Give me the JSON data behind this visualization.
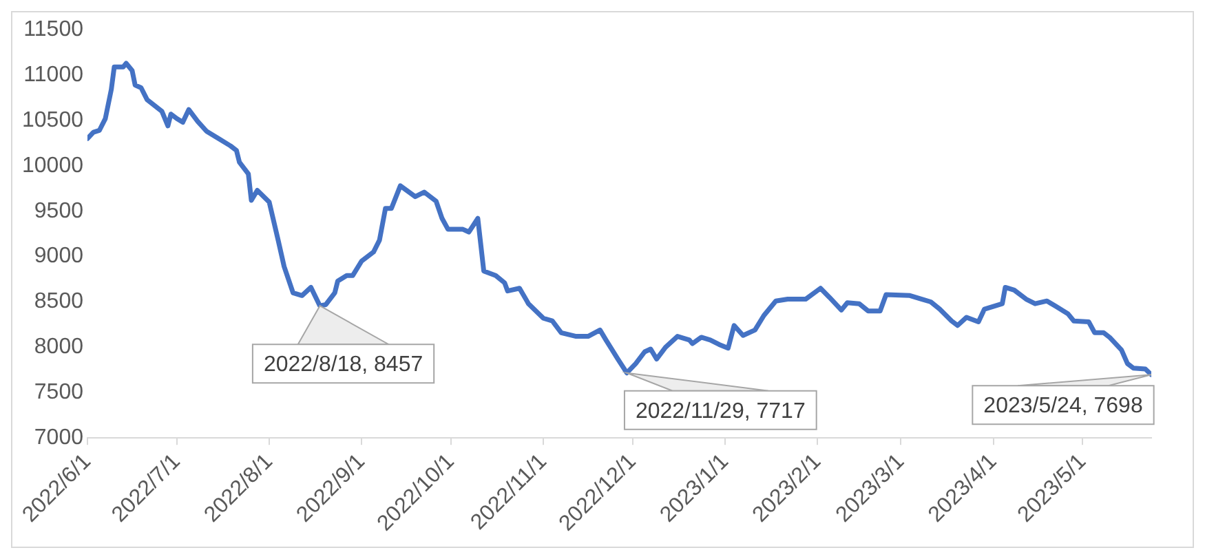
{
  "chart_data": {
    "type": "line",
    "x": [
      "2022-06-01",
      "2022-06-03",
      "2022-06-05",
      "2022-06-07",
      "2022-06-09",
      "2022-06-10",
      "2022-06-13",
      "2022-06-14",
      "2022-06-16",
      "2022-06-17",
      "2022-06-19",
      "2022-06-21",
      "2022-06-26",
      "2022-06-28",
      "2022-06-29",
      "2022-07-01",
      "2022-07-03",
      "2022-07-05",
      "2022-07-08",
      "2022-07-11",
      "2022-07-15",
      "2022-07-19",
      "2022-07-21",
      "2022-07-22",
      "2022-07-25",
      "2022-07-26",
      "2022-07-28",
      "2022-08-01",
      "2022-08-04",
      "2022-08-06",
      "2022-08-09",
      "2022-08-12",
      "2022-08-15",
      "2022-08-18",
      "2022-08-20",
      "2022-08-23",
      "2022-08-24",
      "2022-08-27",
      "2022-08-29",
      "2022-09-01",
      "2022-09-05",
      "2022-09-07",
      "2022-09-09",
      "2022-09-11",
      "2022-09-14",
      "2022-09-19",
      "2022-09-22",
      "2022-09-26",
      "2022-09-28",
      "2022-09-30",
      "2022-10-05",
      "2022-10-07",
      "2022-10-10",
      "2022-10-12",
      "2022-10-16",
      "2022-10-19",
      "2022-10-20",
      "2022-10-24",
      "2022-10-27",
      "2022-11-01",
      "2022-11-04",
      "2022-11-07",
      "2022-11-12",
      "2022-11-16",
      "2022-11-20",
      "2022-11-22",
      "2022-11-26",
      "2022-11-29",
      "2022-12-02",
      "2022-12-05",
      "2022-12-07",
      "2022-12-09",
      "2022-12-12",
      "2022-12-16",
      "2022-12-20",
      "2022-12-21",
      "2022-12-24",
      "2022-12-27",
      "2022-12-30",
      "2023-01-02",
      "2023-01-04",
      "2023-01-07",
      "2023-01-11",
      "2023-01-14",
      "2023-01-18",
      "2023-01-22",
      "2023-01-28",
      "2023-02-02",
      "2023-02-05",
      "2023-02-09",
      "2023-02-11",
      "2023-02-15",
      "2023-02-18",
      "2023-02-22",
      "2023-02-24",
      "2023-03-04",
      "2023-03-08",
      "2023-03-11",
      "2023-03-14",
      "2023-03-18",
      "2023-03-20",
      "2023-03-23",
      "2023-03-27",
      "2023-03-29",
      "2023-04-01",
      "2023-04-04",
      "2023-04-05",
      "2023-04-08",
      "2023-04-12",
      "2023-04-15",
      "2023-04-19",
      "2023-04-22",
      "2023-04-26",
      "2023-04-28",
      "2023-05-03",
      "2023-05-05",
      "2023-05-08",
      "2023-05-10",
      "2023-05-14",
      "2023-05-16",
      "2023-05-18",
      "2023-05-22",
      "2023-05-24"
    ],
    "series": [
      {
        "color": "#4472c4",
        "values": [
          10300,
          10370,
          10390,
          10520,
          10840,
          11090,
          11090,
          11130,
          11050,
          10890,
          10860,
          10730,
          10600,
          10440,
          10570,
          10520,
          10480,
          10620,
          10490,
          10380,
          10300,
          10220,
          10170,
          10040,
          9910,
          9620,
          9730,
          9600,
          9180,
          8890,
          8600,
          8570,
          8660,
          8457,
          8470,
          8600,
          8730,
          8790,
          8790,
          8950,
          9050,
          9180,
          9530,
          9530,
          9780,
          9660,
          9710,
          9610,
          9420,
          9300,
          9300,
          9270,
          9420,
          8840,
          8790,
          8710,
          8620,
          8650,
          8480,
          8320,
          8290,
          8160,
          8120,
          8120,
          8190,
          8080,
          7870,
          7717,
          7820,
          7950,
          7980,
          7870,
          8000,
          8120,
          8080,
          8040,
          8110,
          8080,
          8030,
          7990,
          8240,
          8130,
          8190,
          8350,
          8510,
          8530,
          8530,
          8650,
          8550,
          8410,
          8490,
          8480,
          8400,
          8400,
          8580,
          8570,
          8530,
          8500,
          8420,
          8290,
          8240,
          8330,
          8280,
          8420,
          8450,
          8480,
          8660,
          8630,
          8530,
          8480,
          8510,
          8450,
          8370,
          8290,
          8280,
          8160,
          8160,
          8110,
          7970,
          7820,
          7770,
          7760,
          7698
        ]
      }
    ],
    "xlim": [
      "2022-06-01",
      "2023-05-24"
    ],
    "xticks": [
      {
        "value": "2022-06-01",
        "label": "2022/6/1"
      },
      {
        "value": "2022-07-01",
        "label": "2022/7/1"
      },
      {
        "value": "2022-08-01",
        "label": "2022/8/1"
      },
      {
        "value": "2022-09-01",
        "label": "2022/9/1"
      },
      {
        "value": "2022-10-01",
        "label": "2022/10/1"
      },
      {
        "value": "2022-11-01",
        "label": "2022/11/1"
      },
      {
        "value": "2022-12-01",
        "label": "2022/12/1"
      },
      {
        "value": "2023-01-01",
        "label": "2023/1/1"
      },
      {
        "value": "2023-02-01",
        "label": "2023/2/1"
      },
      {
        "value": "2023-03-01",
        "label": "2023/3/1"
      },
      {
        "value": "2023-04-01",
        "label": "2023/4/1"
      },
      {
        "value": "2023-05-01",
        "label": "2023/5/1"
      }
    ],
    "ylim": [
      7000,
      11500
    ],
    "yticks": [
      7000,
      7500,
      8000,
      8500,
      9000,
      9500,
      10000,
      10500,
      11000,
      11500
    ],
    "grid": false,
    "legend": false,
    "marker": "none",
    "line_style": "solid",
    "annotations": [
      {
        "text": "2022/8/18, 8457",
        "x": "2022-08-18",
        "y": 8457
      },
      {
        "text": "2022/11/29, 7717",
        "x": "2022-11-29",
        "y": 7717
      },
      {
        "text": "2023/5/24, 7698",
        "x": "2023-05-24",
        "y": 7698
      }
    ]
  }
}
